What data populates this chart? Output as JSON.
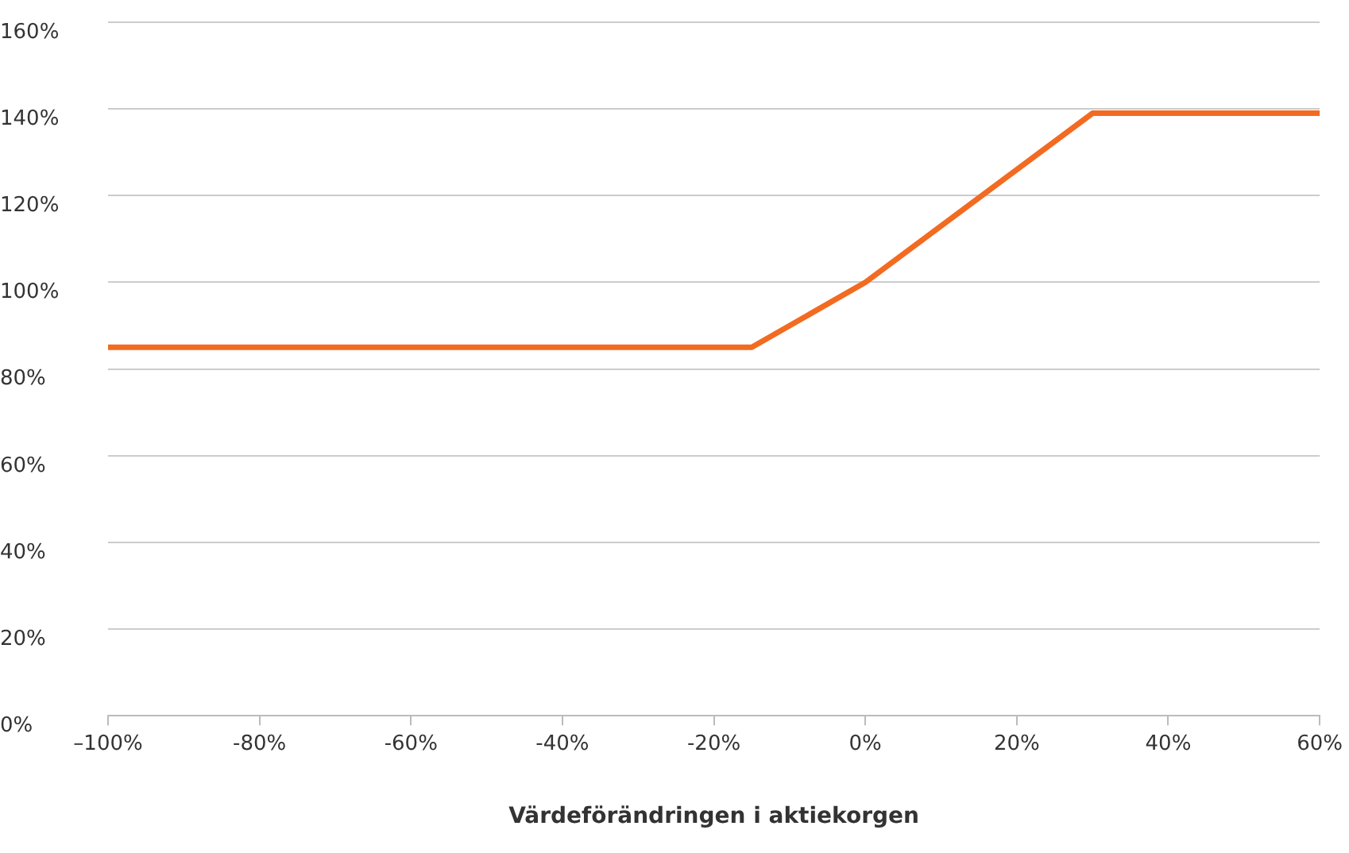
{
  "chart_data": {
    "type": "line",
    "xlabel": "Värdeförändringen i aktiekorgen",
    "x": [
      -100,
      -15,
      0,
      30,
      60
    ],
    "series": [
      {
        "color": "#f26b21",
        "values": [
          85,
          85,
          100,
          139,
          139
        ]
      }
    ],
    "xlim": [
      -100,
      60
    ],
    "ylim": [
      0,
      160
    ],
    "xticks": [
      {
        "value": -100,
        "label": "–100%"
      },
      {
        "value": -80,
        "label": "-80%"
      },
      {
        "value": -60,
        "label": "-60%"
      },
      {
        "value": -40,
        "label": "-40%"
      },
      {
        "value": -20,
        "label": "-20%"
      },
      {
        "value": 0,
        "label": "0%"
      },
      {
        "value": 20,
        "label": "20%"
      },
      {
        "value": 40,
        "label": "40%"
      },
      {
        "value": 60,
        "label": "60%"
      }
    ],
    "yticks": [
      {
        "value": 0,
        "label": "0%"
      },
      {
        "value": 20,
        "label": "20%"
      },
      {
        "value": 40,
        "label": "40%"
      },
      {
        "value": 60,
        "label": "60%"
      },
      {
        "value": 80,
        "label": "80%"
      },
      {
        "value": 100,
        "label": "100%"
      },
      {
        "value": 120,
        "label": "120%"
      },
      {
        "value": 140,
        "label": "140%"
      },
      {
        "value": 160,
        "label": "160%"
      }
    ],
    "grid": "y",
    "legend": false,
    "marker": "none",
    "line_style": "solid"
  }
}
